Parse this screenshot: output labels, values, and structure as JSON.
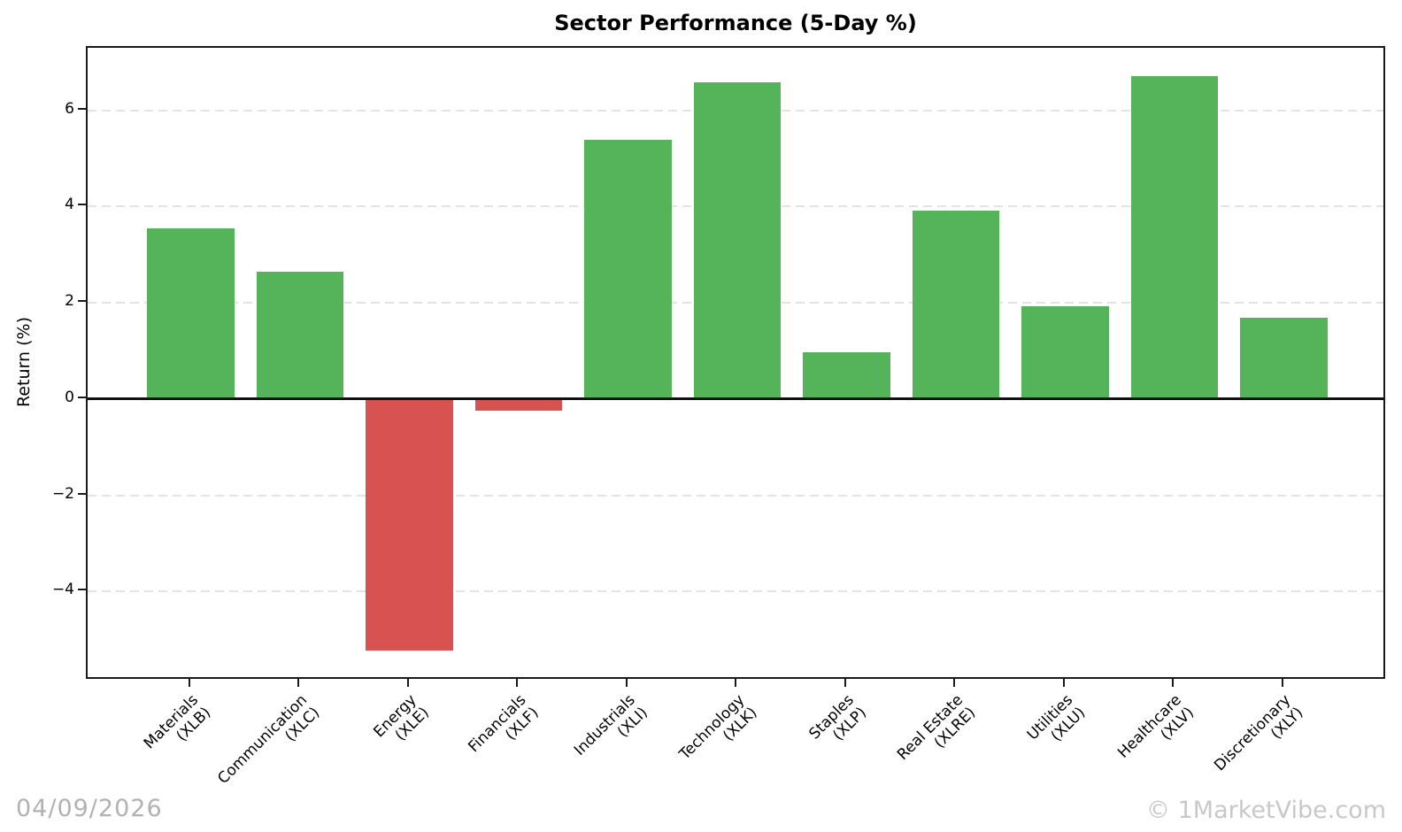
{
  "footer": {
    "date": "04/09/2026",
    "watermark": "© 1MarketVibe.com"
  },
  "chart_data": {
    "type": "bar",
    "title": "Sector Performance (5-Day %)",
    "xlabel": "",
    "ylabel": "Return (%)",
    "ylim": [
      -5.85,
      7.3
    ],
    "yticks": [
      6,
      4,
      2,
      0,
      -2,
      -4
    ],
    "grid": "horizontal-dashed",
    "zero_line": true,
    "legend": false,
    "positive_color": "#55b45a",
    "negative_color": "#d95252",
    "categories": [
      "Materials (XLB)",
      "Communication (XLC)",
      "Energy (XLE)",
      "Financials (XLF)",
      "Industrials (XLI)",
      "Technology (XLK)",
      "Staples (XLP)",
      "Real Estate (XLRE)",
      "Utilities (XLU)",
      "Healthcare (XLV)",
      "Discretionary (XLY)"
    ],
    "bars": [
      {
        "name": "Materials",
        "ticker": "(XLB)",
        "value": 3.55
      },
      {
        "name": "Communication",
        "ticker": "(XLC)",
        "value": 2.65
      },
      {
        "name": "Energy",
        "ticker": "(XLE)",
        "value": -5.22
      },
      {
        "name": "Financials",
        "ticker": "(XLF)",
        "value": -0.25
      },
      {
        "name": "Industrials",
        "ticker": "(XLI)",
        "value": 5.38
      },
      {
        "name": "Technology",
        "ticker": "(XLK)",
        "value": 6.58
      },
      {
        "name": "Staples",
        "ticker": "(XLP)",
        "value": 0.97
      },
      {
        "name": "Real Estate",
        "ticker": "(XLRE)",
        "value": 3.92
      },
      {
        "name": "Utilities",
        "ticker": "(XLU)",
        "value": 1.93
      },
      {
        "name": "Healthcare",
        "ticker": "(XLV)",
        "value": 6.72
      },
      {
        "name": "Discretionary",
        "ticker": "(XLY)",
        "value": 1.69
      }
    ]
  }
}
